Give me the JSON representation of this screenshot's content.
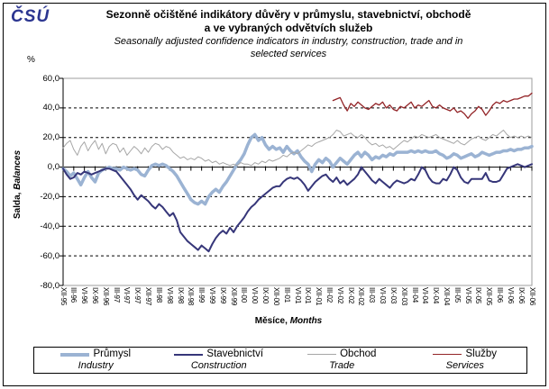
{
  "logo": "ČSÚ",
  "title": {
    "line1": "Sezonně očištěné indikátory důvěry v průmyslu, stavebnictví, obchodě",
    "line2": "a ve vybraných odvětvích služeb",
    "sub1": "Seasonally adjusted confidence indicators in industry, construction, trade and in",
    "sub2": "selected services"
  },
  "axes": {
    "y_unit": "%",
    "y_label_cz": "Salda,",
    "y_label_en": "Balances",
    "x_label_cz": "Měsíce,",
    "x_label_en": "Months"
  },
  "colors": {
    "industry": "#9BB3D3",
    "construction": "#363679",
    "trade": "#A6A6A6",
    "services": "#932427",
    "grid": "#000000",
    "plot_border": "#9C9C9C",
    "logo_blue": "#2B3590"
  },
  "legend": [
    {
      "cz": "Průmysl",
      "en": "Industry",
      "color": "#9BB3D3",
      "thickness": 4
    },
    {
      "cz": "Stavebnictví",
      "en": "Construction",
      "color": "#363679",
      "thickness": 2.5
    },
    {
      "cz": "Obchod",
      "en": "Trade",
      "color": "#A6A6A6",
      "thickness": 1
    },
    {
      "cz": "Služby",
      "en": "Services",
      "color": "#932427",
      "thickness": 1.3
    }
  ],
  "chart_data": {
    "type": "line",
    "title": "Seasonally adjusted confidence indicators in industry, construction, trade and in selected services",
    "x_frequency": "monthly",
    "x_start": "XII-95",
    "x_end": "XII-06",
    "n_points": 133,
    "ylim": [
      -80,
      60
    ],
    "y_ticks": [
      60,
      40,
      20,
      0,
      -20,
      -40,
      -60,
      -80
    ],
    "y_tick_labels": [
      "60,0",
      "40,0",
      "20,0",
      "0,0",
      "-20,0",
      "-40,0",
      "-60,0",
      "-80,0"
    ],
    "gridlines": [
      40,
      20,
      -20,
      -40,
      -60
    ],
    "grid_style": "dashed horizontal",
    "legend_position": "bottom",
    "x_tick_labels": [
      "XII-95",
      "III-96",
      "VI-96",
      "IX-96",
      "XII-96",
      "III-97",
      "VI-97",
      "IX-97",
      "XII-97",
      "III-98",
      "VI-98",
      "IX-98",
      "XII-98",
      "III-99",
      "VI-99",
      "IX-99",
      "XII-99",
      "III-00",
      "VI-00",
      "IX-00",
      "XII-00",
      "III-01",
      "VI-01",
      "IX-01",
      "XII-01",
      "III-02",
      "VI-02",
      "IX-02",
      "XII-02",
      "III-03",
      "VI-03",
      "IX-03",
      "XII-03",
      "III-04",
      "VI-04",
      "IX-04",
      "XII-04",
      "III-05",
      "VI-05",
      "IX-05",
      "XII-05",
      "III-06",
      "VI-06",
      "IX-06",
      "XII-06"
    ],
    "x_ticks_every_n_months": 3,
    "series": [
      {
        "name_cz": "Průmysl",
        "name_en": "Industry",
        "color": "#9BB3D3",
        "width": 3.5,
        "start_index": 0,
        "values": [
          -1,
          -3,
          -6,
          -4,
          -8,
          -12,
          -7,
          -3,
          -7,
          -10,
          -4,
          -2,
          -1,
          0,
          -1,
          -1,
          -2,
          0,
          -1,
          -2,
          -1,
          -2,
          -5,
          -6,
          -2,
          1,
          2,
          1,
          2,
          1,
          -1,
          -3,
          -6,
          -10,
          -14,
          -18,
          -22,
          -24,
          -25,
          -23,
          -25,
          -20,
          -17,
          -15,
          -17,
          -13,
          -10,
          -6,
          -2,
          2,
          5,
          9,
          15,
          20,
          22,
          18,
          20,
          15,
          12,
          14,
          12,
          13,
          10,
          14,
          11,
          9,
          11,
          7,
          4,
          2,
          -3,
          2,
          5,
          3,
          6,
          4,
          0,
          3,
          6,
          4,
          2,
          5,
          8,
          10,
          7,
          10,
          8,
          5,
          7,
          6,
          8,
          7,
          9,
          8,
          10,
          10,
          10,
          10,
          11,
          10,
          11,
          10,
          11,
          10,
          10,
          11,
          9,
          8,
          6,
          7,
          9,
          8,
          6,
          7,
          8,
          9,
          7,
          8,
          10,
          9,
          8,
          9,
          10,
          10,
          11,
          11,
          12,
          11,
          12,
          12,
          13,
          13,
          14
        ]
      },
      {
        "name_cz": "Stavebnictví",
        "name_en": "Construction",
        "color": "#363679",
        "width": 2,
        "start_index": 0,
        "values": [
          -1,
          -5,
          -8,
          -7,
          -4,
          -5,
          -3,
          -4,
          -5,
          -4,
          -3,
          -2,
          -1,
          -1,
          -2,
          -3,
          -6,
          -9,
          -12,
          -15,
          -19,
          -22,
          -19,
          -21,
          -23,
          -26,
          -28,
          -25,
          -27,
          -30,
          -33,
          -31,
          -36,
          -44,
          -47,
          -50,
          -52,
          -54,
          -56,
          -53,
          -55,
          -57,
          -52,
          -48,
          -45,
          -43,
          -45,
          -41,
          -44,
          -40,
          -37,
          -34,
          -30,
          -27,
          -25,
          -22,
          -20,
          -18,
          -16,
          -14,
          -13,
          -13,
          -10,
          -8,
          -7,
          -8,
          -7,
          -9,
          -12,
          -16,
          -13,
          -10,
          -8,
          -6,
          -5,
          -8,
          -10,
          -7,
          -11,
          -9,
          -12,
          -10,
          -8,
          -5,
          0,
          -3,
          -6,
          -9,
          -11,
          -8,
          -10,
          -12,
          -14,
          -11,
          -9,
          -10,
          -11,
          -10,
          -8,
          -9,
          -5,
          0,
          -2,
          -7,
          -10,
          -11,
          -11,
          -8,
          -9,
          -5,
          0,
          -2,
          -7,
          -10,
          -11,
          -8,
          -8,
          -8,
          -8,
          -4,
          -9,
          -10,
          -10,
          -9,
          -5,
          -1,
          0,
          1,
          2,
          1,
          0,
          1,
          2
        ]
      },
      {
        "name_cz": "Obchod",
        "name_en": "Trade",
        "color": "#A6A6A6",
        "width": 1,
        "start_index": 0,
        "values": [
          13,
          16,
          18,
          12,
          8,
          14,
          17,
          11,
          15,
          18,
          12,
          16,
          9,
          14,
          16,
          15,
          10,
          13,
          8,
          11,
          14,
          12,
          9,
          13,
          10,
          14,
          16,
          15,
          12,
          14,
          13,
          10,
          8,
          6,
          7,
          5,
          6,
          5,
          7,
          6,
          4,
          5,
          3,
          4,
          2,
          3,
          2,
          1,
          2,
          1,
          3,
          2,
          2,
          1,
          3,
          2,
          4,
          3,
          5,
          4,
          5,
          6,
          8,
          7,
          9,
          10,
          9,
          11,
          13,
          15,
          14,
          16,
          17,
          18,
          19,
          20,
          22,
          25,
          24,
          21,
          22,
          23,
          21,
          20,
          22,
          20,
          17,
          15,
          16,
          14,
          15,
          13,
          14,
          12,
          14,
          16,
          18,
          17,
          19,
          21,
          20,
          22,
          21,
          20,
          21,
          22,
          20,
          19,
          18,
          17,
          16,
          18,
          16,
          15,
          17,
          19,
          20,
          21,
          19,
          18,
          20,
          22,
          21,
          23,
          25,
          22,
          20,
          21,
          20,
          21,
          20,
          21,
          20
        ]
      },
      {
        "name_cz": "Služby",
        "name_en": "Services",
        "color": "#932427",
        "width": 1.3,
        "start_index": 76,
        "values": [
          45,
          46,
          47,
          42,
          38,
          43,
          41,
          44,
          42,
          40,
          39,
          41,
          43,
          42,
          44,
          40,
          42,
          39,
          38,
          41,
          40,
          42,
          44,
          40,
          42,
          41,
          43,
          45,
          41,
          40,
          42,
          40,
          39,
          38,
          40,
          37,
          38,
          36,
          33,
          36,
          38,
          41,
          39,
          35,
          38,
          42,
          44,
          43,
          45,
          44,
          45,
          46,
          46,
          47,
          48,
          48,
          50
        ]
      }
    ]
  }
}
